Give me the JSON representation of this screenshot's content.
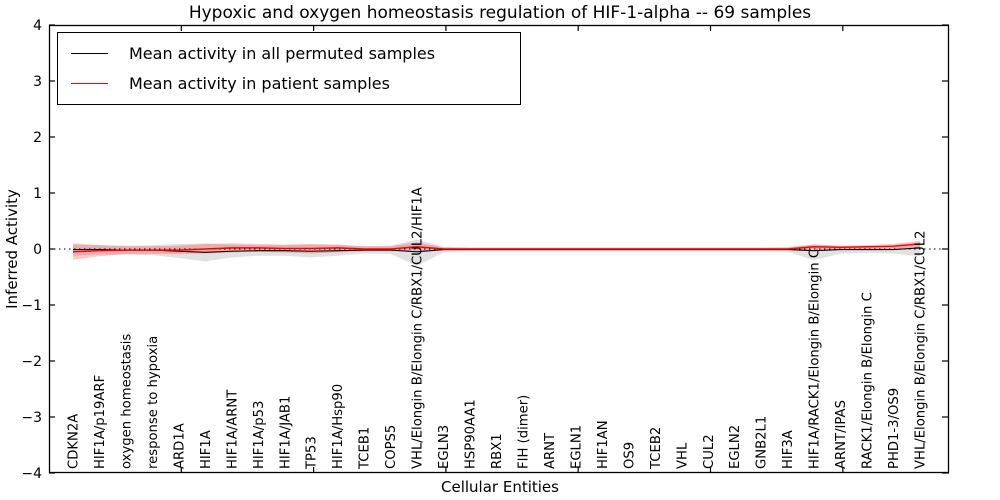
{
  "legend": {
    "items": [
      {
        "label": "Mean activity in all permuted samples",
        "color": "#000000"
      },
      {
        "label": "Mean activity in patient samples",
        "color": "#ff0000"
      }
    ]
  },
  "chart_data": {
    "type": "line",
    "title": "Hypoxic and oxygen homeostasis regulation of HIF-1-alpha -- 69 samples",
    "xlabel": "Cellular Entities",
    "ylabel": "Inferred Activity",
    "ylim": [
      -4,
      4
    ],
    "grid": false,
    "legend_position": "upper left",
    "zero_line_style": "dotted",
    "yticks": [
      {
        "v": 4,
        "label": "4"
      },
      {
        "v": 3,
        "label": "3"
      },
      {
        "v": 2,
        "label": "2"
      },
      {
        "v": 1,
        "label": "1"
      },
      {
        "v": 0,
        "label": "0"
      },
      {
        "v": -1,
        "label": "−1"
      },
      {
        "v": -2,
        "label": "−2"
      },
      {
        "v": -3,
        "label": "−3"
      },
      {
        "v": -4,
        "label": "−4"
      }
    ],
    "categories": [
      "CDKN2A",
      "HIF1A/p19ARF",
      "oxygen homeostasis",
      "response to hypoxia",
      "ARD1A",
      "HIF1A",
      "HIF1A/ARNT",
      "HIF1A/p53",
      "HIF1A/JAB1",
      "TP53",
      "HIF1A/Hsp90",
      "TCEB1",
      "COPS5",
      "VHL/Elongin B/Elongin C/RBX1/CUL2/HIF1A",
      "EGLN3",
      "HSP90AA1",
      "RBX1",
      "FIH (dimer)",
      "ARNT",
      "EGLN1",
      "HIF1AN",
      "OS9",
      "TCEB2",
      "VHL",
      "CUL2",
      "EGLN2",
      "GNB2L1",
      "HIF3A",
      "HIF1A/RACK1/Elongin B/Elongin C",
      "ARNT/IPAS",
      "RACK1/Elongin B/Elongin C",
      "PHD1-3/OS9",
      "VHL/Elongin B/Elongin C/RBX1/CUL2"
    ],
    "series": [
      {
        "name": "Mean activity in all permuted samples",
        "color": "#000000",
        "line_width": 1.1,
        "values": [
          -0.01,
          -0.01,
          -0.02,
          -0.02,
          -0.04,
          -0.06,
          -0.04,
          -0.03,
          -0.03,
          -0.04,
          -0.03,
          -0.02,
          -0.02,
          -0.05,
          -0.01,
          -0.01,
          -0.01,
          -0.01,
          -0.01,
          -0.01,
          -0.01,
          -0.01,
          -0.01,
          -0.01,
          -0.01,
          -0.01,
          -0.01,
          -0.01,
          -0.03,
          -0.01,
          -0.01,
          -0.01,
          0.02
        ],
        "band_upper": [
          0.08,
          0.07,
          0.06,
          0.07,
          0.09,
          0.1,
          0.08,
          0.07,
          0.07,
          0.08,
          0.07,
          0.05,
          0.06,
          0.17,
          0.04,
          0.03,
          0.03,
          0.03,
          0.03,
          0.03,
          0.03,
          0.03,
          0.03,
          0.03,
          0.03,
          0.03,
          0.03,
          0.03,
          0.08,
          0.05,
          0.05,
          0.06,
          0.12
        ],
        "band_lower": [
          -0.12,
          -0.1,
          -0.1,
          -0.11,
          -0.16,
          -0.22,
          -0.15,
          -0.12,
          -0.12,
          -0.15,
          -0.12,
          -0.08,
          -0.09,
          -0.3,
          -0.06,
          -0.05,
          -0.05,
          -0.05,
          -0.05,
          -0.05,
          -0.05,
          -0.05,
          -0.05,
          -0.05,
          -0.05,
          -0.05,
          -0.05,
          -0.05,
          -0.2,
          -0.08,
          -0.07,
          -0.08,
          -0.13
        ],
        "band_color": "#aaaaaa",
        "band_opacity": 0.35
      },
      {
        "name": "Mean activity in patient samples",
        "color": "#ff0000",
        "line_width": 1.4,
        "values": [
          -0.05,
          -0.03,
          -0.02,
          -0.02,
          -0.02,
          0.0,
          0.02,
          0.02,
          0.01,
          0.01,
          0.02,
          0.0,
          0.0,
          0.04,
          0.0,
          0.0,
          0.0,
          0.0,
          0.0,
          0.0,
          0.0,
          0.0,
          0.0,
          0.0,
          0.0,
          0.0,
          0.0,
          0.0,
          0.04,
          0.03,
          0.04,
          0.05,
          0.09
        ],
        "band_upper": [
          0.1,
          0.07,
          0.05,
          0.05,
          0.06,
          0.09,
          0.1,
          0.09,
          0.08,
          0.09,
          0.08,
          0.05,
          0.05,
          0.12,
          0.03,
          0.02,
          0.02,
          0.02,
          0.02,
          0.02,
          0.02,
          0.02,
          0.02,
          0.02,
          0.02,
          0.02,
          0.02,
          0.03,
          0.08,
          0.06,
          0.07,
          0.09,
          0.15
        ],
        "band_lower": [
          -0.19,
          -0.13,
          -0.09,
          -0.09,
          -0.09,
          -0.08,
          -0.06,
          -0.05,
          -0.06,
          -0.08,
          -0.06,
          -0.04,
          -0.04,
          -0.03,
          -0.02,
          -0.02,
          -0.02,
          -0.02,
          -0.02,
          -0.02,
          -0.02,
          -0.02,
          -0.02,
          -0.02,
          -0.02,
          -0.02,
          -0.02,
          -0.02,
          -0.01,
          0.0,
          0.0,
          0.01,
          0.03
        ],
        "band_color": "#ff0000",
        "band_opacity": 0.22
      }
    ]
  }
}
